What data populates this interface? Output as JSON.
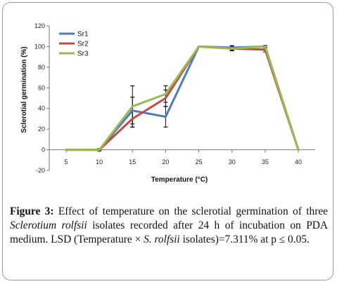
{
  "chart_data": {
    "type": "line",
    "xlabel": "Temperature (°C)",
    "ylabel": "Sclerotial germination (%)",
    "x": [
      5,
      10,
      15,
      20,
      25,
      30,
      35,
      40
    ],
    "x_ticks": [
      "5",
      "10",
      "15",
      "20",
      "25",
      "30",
      "35",
      "40"
    ],
    "ylim": [
      -20,
      120
    ],
    "y_ticks": [
      -20,
      0,
      20,
      40,
      60,
      80,
      100,
      120
    ],
    "grid": false,
    "legend_position": "top-left",
    "series": [
      {
        "name": "Sr1",
        "color": "#4a7ebb",
        "values": [
          0,
          0,
          38,
          32,
          100,
          99,
          100,
          0
        ],
        "errors": [
          0,
          1,
          13,
          10,
          0,
          2,
          1,
          0
        ]
      },
      {
        "name": "Sr2",
        "color": "#be4b48",
        "values": [
          0,
          0,
          30,
          50,
          100,
          98,
          97,
          0
        ],
        "errors": [
          0,
          1,
          8,
          8,
          0,
          2,
          2,
          0
        ]
      },
      {
        "name": "Sr3",
        "color": "#98b954",
        "values": [
          0,
          0,
          42,
          54,
          100,
          98,
          100,
          0
        ],
        "errors": [
          0,
          1,
          20,
          8,
          0,
          2,
          1,
          0
        ]
      }
    ]
  },
  "caption": {
    "label": "Figure 3:",
    "text_1": " Effect of temperature on the sclerotial germination of three ",
    "species": "Sclerotium rolfsii",
    "text_2": " isolates recorded after 24 h of incubation on PDA medium. LSD (Temperature × ",
    "species_abbr": "S. rolfsii",
    "text_3": " isolates)=7.311% at p ≤ 0.05."
  }
}
